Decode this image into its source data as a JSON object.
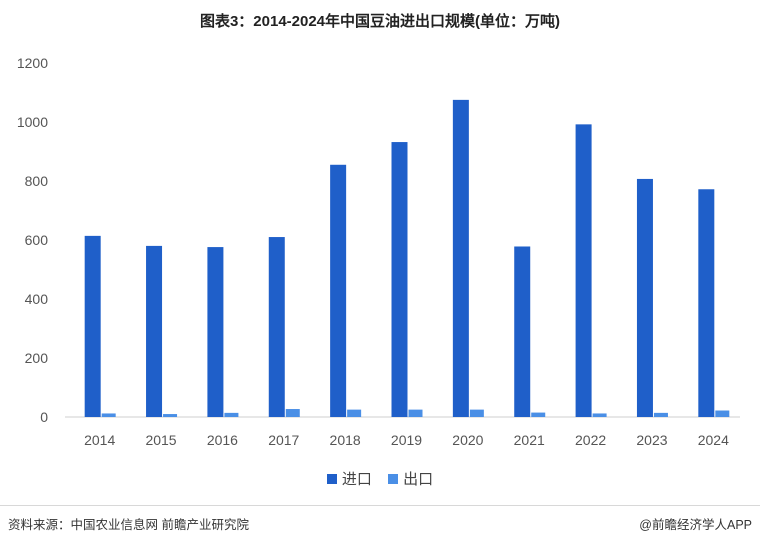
{
  "chart_data": {
    "type": "bar",
    "title": "图表3：2014-2024年中国豆油进出口规模(单位：万吨)",
    "categories": [
      "2014",
      "2015",
      "2016",
      "2017",
      "2018",
      "2019",
      "2020",
      "2021",
      "2022",
      "2023",
      "2024"
    ],
    "series": [
      {
        "name": "进口",
        "color": "#1f5fc9",
        "values": [
          614,
          580,
          576,
          610,
          855,
          932,
          1075,
          578,
          992,
          807,
          772
        ]
      },
      {
        "name": "出口",
        "color": "#4a8fe6",
        "values": [
          12,
          10,
          14,
          27,
          25,
          25,
          25,
          15,
          12,
          14,
          22
        ]
      }
    ],
    "yticks": [
      "0",
      "200",
      "400",
      "600",
      "800",
      "1000",
      "1200"
    ],
    "ylim": [
      0,
      1200
    ],
    "grid": false,
    "legend_position": "bottom-center"
  },
  "footer": {
    "source": "资料来源：中国农业信息网 前瞻产业研究院",
    "brand": "@前瞻经济学人APP"
  }
}
